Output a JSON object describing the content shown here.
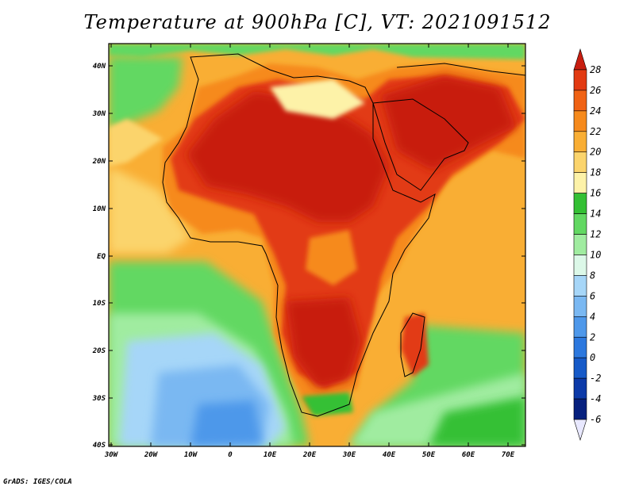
{
  "title": "Temperature at 900hPa [C], VT: 2021091512",
  "footer": "GrADS: IGES/COLA",
  "map": {
    "lat_labels": [
      "40N",
      "30N",
      "20N",
      "10N",
      "EQ",
      "10S",
      "20S",
      "30S",
      "40S"
    ],
    "lon_labels": [
      "30W",
      "20W",
      "10W",
      "0",
      "10E",
      "20E",
      "30E",
      "40E",
      "50E",
      "60E",
      "70E"
    ],
    "lat_range": [
      -40,
      45
    ],
    "lon_range": [
      -30,
      75
    ]
  },
  "colorbar": {
    "labels": [
      "28",
      "26",
      "24",
      "22",
      "20",
      "18",
      "16",
      "14",
      "12",
      "10",
      "8",
      "6",
      "4",
      "2",
      "0",
      "-2",
      "-4",
      "-6"
    ],
    "colors": [
      "#c81e10",
      "#e23a12",
      "#f06214",
      "#f68a1c",
      "#f9ae34",
      "#fbd46c",
      "#fdf2a8",
      "#34c034",
      "#62d862",
      "#a0eca0",
      "#dcf8e8",
      "#a6d6f8",
      "#7ab8f2",
      "#4e98ea",
      "#2c78de",
      "#165ac8",
      "#0c3aa8",
      "#06207e",
      "#e8e8ff"
    ]
  }
}
